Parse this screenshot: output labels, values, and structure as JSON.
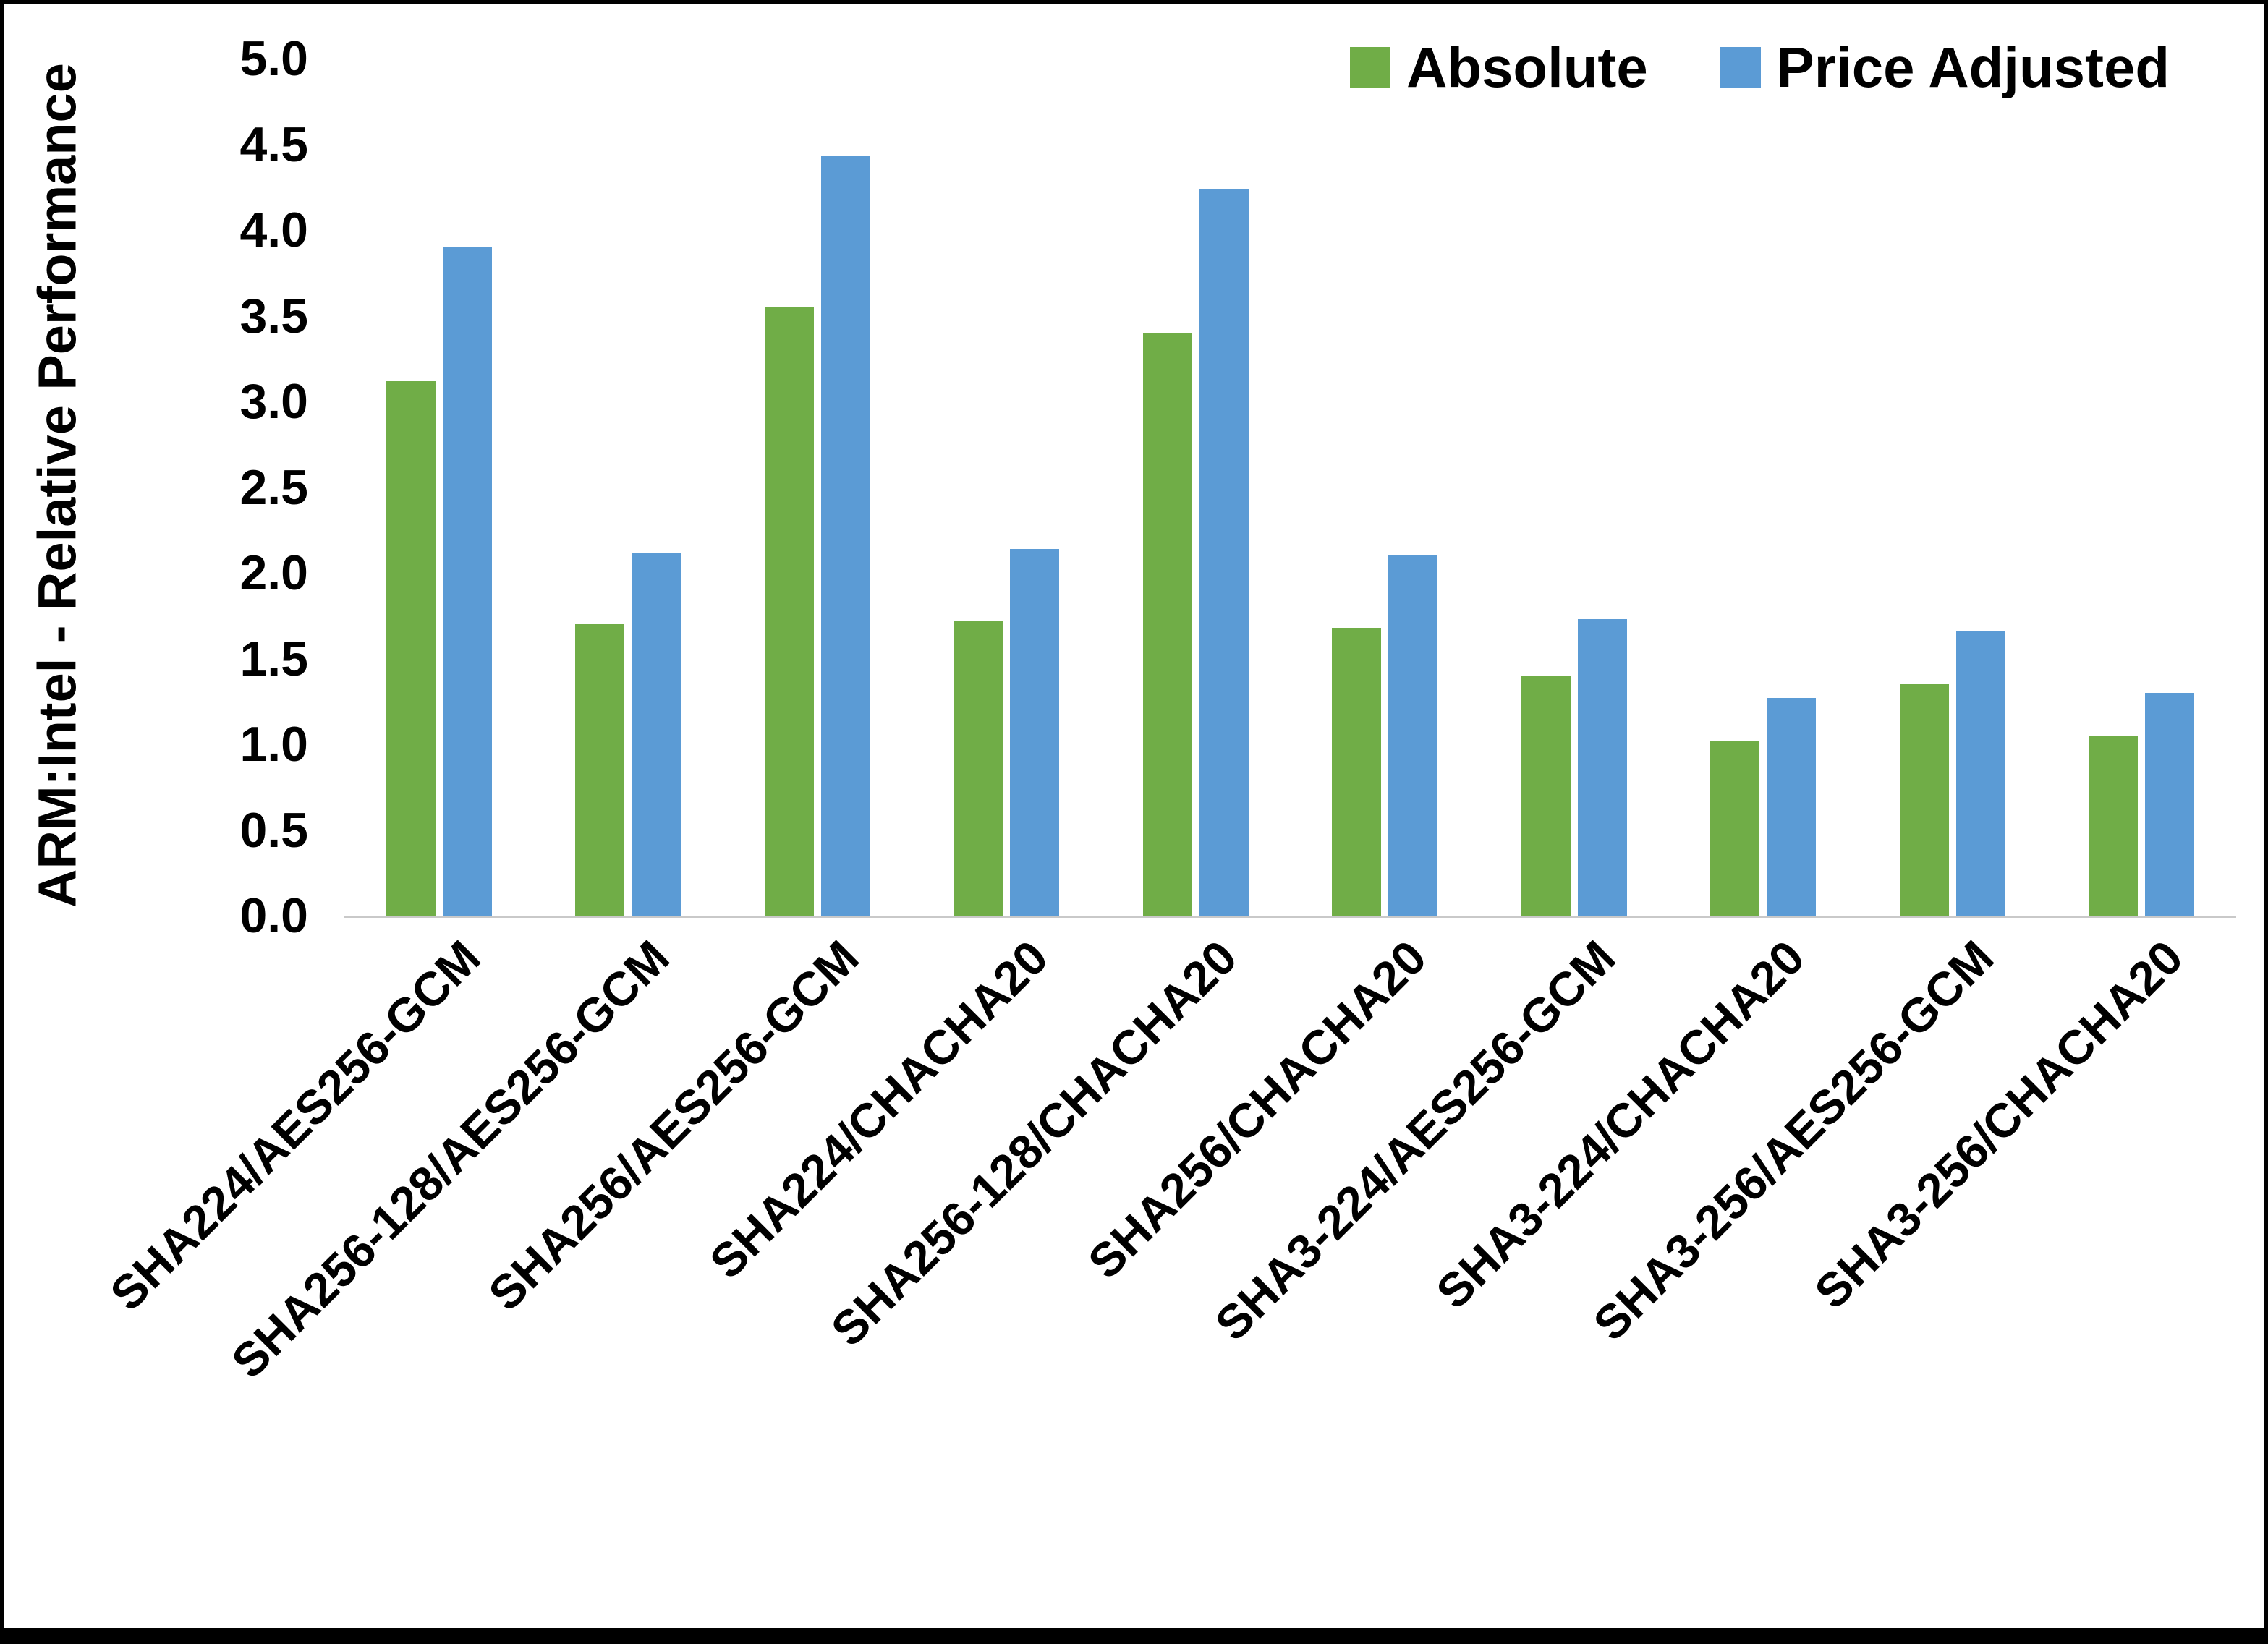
{
  "chart_data": {
    "type": "bar",
    "title": "",
    "xlabel": "",
    "ylabel": "ARM:Intel - Relative Performance",
    "ylim": [
      0,
      5
    ],
    "ytick_step": 0.5,
    "ytick_decimals": 1,
    "grid": false,
    "legend_position": "top-right",
    "categories": [
      "SHA224/AES256-GCM",
      "SHA256-128/AES256-GCM",
      "SHA256/AES256-GCM",
      "SHA224/CHACHA20",
      "SHA256-128/CHACHA20",
      "SHA256/CHACHA20",
      "SHA3-224/AES256-GCM",
      "SHA3-224/CHACHA20",
      "SHA3-256/AES256-GCM",
      "SHA3-256/CHACHA20"
    ],
    "series": [
      {
        "name": "Absolute",
        "color": "#70AD47",
        "values": [
          3.12,
          1.7,
          3.55,
          1.72,
          3.4,
          1.68,
          1.4,
          1.02,
          1.35,
          1.05
        ]
      },
      {
        "name": "Price Adjusted",
        "color": "#5B9BD5",
        "values": [
          3.9,
          2.12,
          4.43,
          2.14,
          4.24,
          2.1,
          1.73,
          1.27,
          1.66,
          1.3
        ]
      }
    ]
  }
}
